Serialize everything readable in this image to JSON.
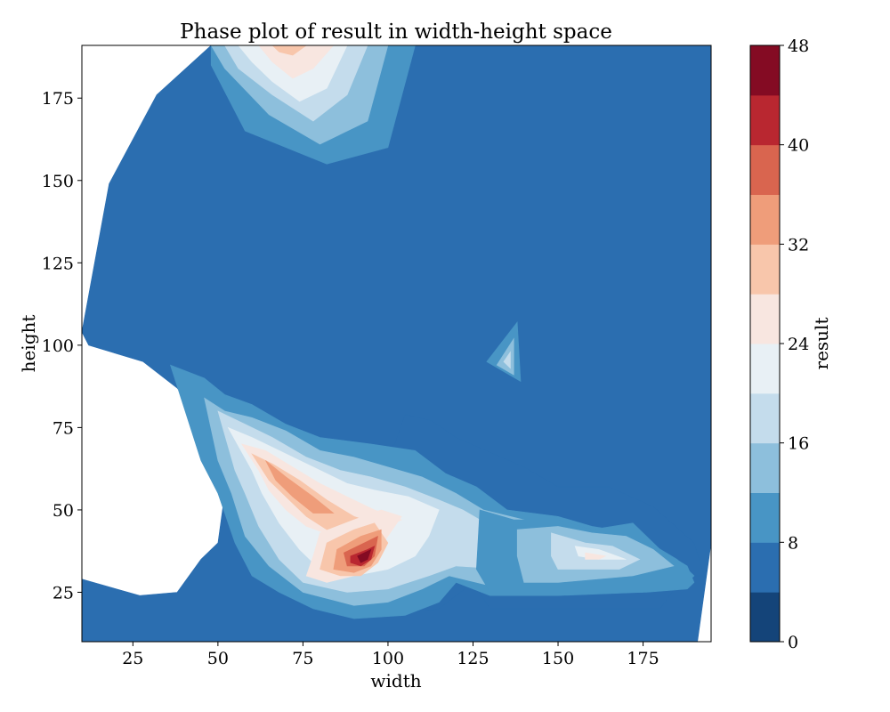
{
  "chart_data": {
    "type": "contour",
    "title": "Phase plot of result in width-height space",
    "xlabel": "width",
    "ylabel": "height",
    "colorbar_label": "result",
    "xlim": [
      10,
      195
    ],
    "ylim": [
      10,
      191
    ],
    "xticks": [
      "25",
      "50",
      "75",
      "100",
      "125",
      "150",
      "175"
    ],
    "xtick_values": [
      25,
      50,
      75,
      100,
      125,
      150,
      175
    ],
    "yticks": [
      "25",
      "50",
      "75",
      "100",
      "125",
      "150",
      "175"
    ],
    "ytick_values": [
      25,
      50,
      75,
      100,
      125,
      150,
      175
    ],
    "colorbar_ticks": [
      "0",
      "8",
      "16",
      "24",
      "32",
      "40",
      "48"
    ],
    "colorbar_tick_values": [
      0,
      8,
      16,
      24,
      32,
      40,
      48
    ],
    "levels": [
      0,
      4,
      8,
      12,
      16,
      20,
      24,
      28,
      32,
      36,
      40,
      44,
      48
    ],
    "colors": [
      "#144479",
      "#2b6eb0",
      "#4895c5",
      "#8dbfdc",
      "#c4dcec",
      "#e8f0f5",
      "#f8e6e0",
      "#f8c6ab",
      "#ef9d7a",
      "#d9654f",
      "#b92730",
      "#840b23"
    ],
    "regions": [
      {
        "level": 1,
        "poly": [
          [
            10,
            104
          ],
          [
            18,
            149
          ],
          [
            32,
            176
          ],
          [
            48,
            191
          ],
          [
            195,
            191
          ],
          [
            195,
            40
          ],
          [
            191,
            10
          ],
          [
            10,
            10
          ],
          [
            10,
            29
          ],
          [
            27,
            24
          ],
          [
            38,
            25
          ],
          [
            45,
            35
          ],
          [
            50,
            40
          ],
          [
            52,
            55
          ],
          [
            44,
            80
          ],
          [
            38,
            87
          ],
          [
            28,
            95
          ],
          [
            12,
            100
          ]
        ]
      },
      {
        "level": 1,
        "poly": [
          [
            105,
            79
          ],
          [
            113,
            77
          ],
          [
            120,
            72
          ],
          [
            140,
            63
          ],
          [
            150,
            57
          ],
          [
            165,
            57
          ],
          [
            178,
            51
          ],
          [
            190,
            40
          ],
          [
            193,
            30
          ],
          [
            187,
            30
          ],
          [
            180,
            20
          ],
          [
            170,
            20
          ],
          [
            140,
            20
          ],
          [
            130,
            20
          ],
          [
            125,
            28
          ],
          [
            115,
            20
          ],
          [
            100,
            18
          ],
          [
            90,
            18
          ],
          [
            80,
            30
          ],
          [
            75,
            45
          ],
          [
            85,
            55
          ],
          [
            95,
            65
          ],
          [
            102,
            70
          ]
        ]
      },
      {
        "level": 2,
        "poly": [
          [
            36,
            94
          ],
          [
            46,
            90
          ],
          [
            52,
            85
          ],
          [
            60,
            82
          ],
          [
            70,
            76
          ],
          [
            80,
            72
          ],
          [
            95,
            70
          ],
          [
            108,
            68
          ],
          [
            117,
            61
          ],
          [
            126,
            57
          ],
          [
            135,
            50
          ],
          [
            150,
            48
          ],
          [
            160,
            45
          ],
          [
            172,
            43
          ],
          [
            185,
            35
          ],
          [
            190,
            30
          ],
          [
            188,
            28
          ],
          [
            175,
            25
          ],
          [
            150,
            24
          ],
          [
            130,
            24
          ],
          [
            120,
            28
          ],
          [
            115,
            22
          ],
          [
            105,
            18
          ],
          [
            90,
            17
          ],
          [
            78,
            20
          ],
          [
            68,
            25
          ],
          [
            60,
            30
          ],
          [
            55,
            40
          ],
          [
            50,
            55
          ],
          [
            45,
            65
          ]
        ]
      },
      {
        "level": 3,
        "poly": [
          [
            46,
            84
          ],
          [
            52,
            80
          ],
          [
            60,
            78
          ],
          [
            70,
            74
          ],
          [
            80,
            68
          ],
          [
            90,
            66
          ],
          [
            100,
            63
          ],
          [
            110,
            60
          ],
          [
            120,
            55
          ],
          [
            128,
            50
          ],
          [
            140,
            47
          ],
          [
            150,
            43
          ],
          [
            160,
            42
          ],
          [
            170,
            40
          ],
          [
            180,
            33
          ],
          [
            175,
            28
          ],
          [
            150,
            27
          ],
          [
            130,
            27
          ],
          [
            118,
            30
          ],
          [
            110,
            26
          ],
          [
            100,
            22
          ],
          [
            90,
            21
          ],
          [
            75,
            25
          ],
          [
            65,
            33
          ],
          [
            58,
            42
          ],
          [
            54,
            55
          ],
          [
            50,
            65
          ]
        ]
      },
      {
        "level": 4,
        "poly": [
          [
            50,
            80
          ],
          [
            58,
            76
          ],
          [
            66,
            72
          ],
          [
            76,
            66
          ],
          [
            86,
            62
          ],
          [
            95,
            60
          ],
          [
            105,
            57
          ],
          [
            115,
            53
          ],
          [
            122,
            50
          ],
          [
            132,
            44
          ],
          [
            142,
            40
          ],
          [
            152,
            38
          ],
          [
            160,
            37
          ],
          [
            168,
            35
          ],
          [
            160,
            33
          ],
          [
            150,
            32
          ],
          [
            135,
            32
          ],
          [
            120,
            33
          ],
          [
            112,
            30
          ],
          [
            100,
            26
          ],
          [
            88,
            25
          ],
          [
            75,
            28
          ],
          [
            68,
            35
          ],
          [
            62,
            45
          ],
          [
            58,
            55
          ],
          [
            55,
            62
          ]
        ]
      },
      {
        "level": 5,
        "poly": [
          [
            53,
            75
          ],
          [
            60,
            72
          ],
          [
            68,
            68
          ],
          [
            78,
            63
          ],
          [
            88,
            58
          ],
          [
            96,
            56
          ],
          [
            106,
            54
          ],
          [
            115,
            50
          ],
          [
            112,
            42
          ],
          [
            108,
            36
          ],
          [
            100,
            32
          ],
          [
            90,
            30
          ],
          [
            80,
            32
          ],
          [
            74,
            38
          ],
          [
            68,
            46
          ],
          [
            63,
            55
          ],
          [
            60,
            62
          ]
        ]
      },
      {
        "level": 6,
        "poly": [
          [
            57,
            70
          ],
          [
            64,
            68
          ],
          [
            72,
            63
          ],
          [
            80,
            58
          ],
          [
            88,
            54
          ],
          [
            96,
            50
          ],
          [
            104,
            47
          ],
          [
            98,
            44
          ],
          [
            92,
            42
          ],
          [
            84,
            42
          ],
          [
            76,
            45
          ],
          [
            70,
            50
          ],
          [
            65,
            56
          ],
          [
            62,
            62
          ]
        ]
      },
      {
        "level": 7,
        "poly": [
          [
            60,
            67
          ],
          [
            66,
            64
          ],
          [
            74,
            59
          ],
          [
            82,
            53
          ],
          [
            90,
            48
          ],
          [
            96,
            46
          ],
          [
            90,
            44
          ],
          [
            82,
            44
          ],
          [
            76,
            48
          ],
          [
            70,
            54
          ],
          [
            65,
            59
          ]
        ]
      },
      {
        "level": 8,
        "poly": [
          [
            64,
            65
          ],
          [
            70,
            60
          ],
          [
            78,
            54
          ],
          [
            84,
            49
          ],
          [
            78,
            49
          ],
          [
            72,
            54
          ],
          [
            67,
            59
          ]
        ]
      },
      {
        "level": 6,
        "poly": [
          [
            80,
            43
          ],
          [
            90,
            47
          ],
          [
            98,
            50
          ],
          [
            104,
            48
          ],
          [
            100,
            42
          ],
          [
            96,
            36
          ],
          [
            90,
            30
          ],
          [
            82,
            28
          ],
          [
            76,
            30
          ],
          [
            78,
            36
          ]
        ]
      },
      {
        "level": 7,
        "poly": [
          [
            82,
            40
          ],
          [
            90,
            44
          ],
          [
            96,
            46
          ],
          [
            100,
            40
          ],
          [
            97,
            34
          ],
          [
            92,
            30
          ],
          [
            86,
            30
          ],
          [
            80,
            32
          ]
        ]
      },
      {
        "level": 8,
        "poly": [
          [
            85,
            38
          ],
          [
            92,
            42
          ],
          [
            98,
            44
          ],
          [
            98,
            38
          ],
          [
            95,
            33
          ],
          [
            90,
            31
          ],
          [
            84,
            32
          ]
        ]
      },
      {
        "level": 9,
        "poly": [
          [
            87,
            37
          ],
          [
            93,
            40
          ],
          [
            97,
            42
          ],
          [
            96,
            36
          ],
          [
            93,
            33
          ],
          [
            88,
            33
          ]
        ]
      },
      {
        "level": 10,
        "poly": [
          [
            89,
            36
          ],
          [
            94,
            38
          ],
          [
            96,
            39
          ],
          [
            95,
            35
          ],
          [
            92,
            33
          ],
          [
            89,
            34
          ]
        ]
      },
      {
        "level": 11,
        "poly": [
          [
            91,
            36
          ],
          [
            95,
            38
          ],
          [
            94,
            35
          ],
          [
            92,
            34
          ]
        ]
      },
      {
        "level": 2,
        "poly": [
          [
            127,
            50
          ],
          [
            137,
            47
          ],
          [
            150,
            47
          ],
          [
            160,
            44
          ],
          [
            172,
            46
          ],
          [
            180,
            38
          ],
          [
            188,
            33
          ],
          [
            190,
            28
          ],
          [
            188,
            26
          ],
          [
            176,
            25
          ],
          [
            150,
            25
          ],
          [
            130,
            25
          ],
          [
            126,
            32
          ]
        ]
      },
      {
        "level": 3,
        "poly": [
          [
            138,
            44
          ],
          [
            150,
            45
          ],
          [
            160,
            43
          ],
          [
            170,
            42
          ],
          [
            178,
            38
          ],
          [
            184,
            33
          ],
          [
            172,
            30
          ],
          [
            150,
            28
          ],
          [
            140,
            28
          ],
          [
            138,
            36
          ]
        ]
      },
      {
        "level": 4,
        "poly": [
          [
            148,
            43
          ],
          [
            158,
            40
          ],
          [
            166,
            39
          ],
          [
            174,
            35
          ],
          [
            168,
            32
          ],
          [
            150,
            32
          ],
          [
            148,
            36
          ]
        ]
      },
      {
        "level": 5,
        "poly": [
          [
            155,
            39
          ],
          [
            162,
            38
          ],
          [
            170,
            35
          ],
          [
            162,
            35
          ],
          [
            156,
            36
          ]
        ]
      },
      {
        "level": 6,
        "poly": [
          [
            158,
            37
          ],
          [
            164,
            36
          ],
          [
            162,
            35
          ],
          [
            158,
            35
          ]
        ]
      },
      {
        "level": 2,
        "poly": [
          [
            129,
            95
          ],
          [
            138,
            107
          ],
          [
            139,
            89
          ]
        ]
      },
      {
        "level": 3,
        "poly": [
          [
            132,
            94
          ],
          [
            137,
            102
          ],
          [
            137,
            91
          ]
        ]
      },
      {
        "level": 4,
        "poly": [
          [
            134,
            95
          ],
          [
            136,
            98
          ],
          [
            136,
            93
          ]
        ]
      },
      {
        "level": 2,
        "poly": [
          [
            48,
            191
          ],
          [
            108,
            191
          ],
          [
            100,
            160
          ],
          [
            82,
            155
          ],
          [
            58,
            165
          ],
          [
            48,
            185
          ]
        ]
      },
      {
        "level": 3,
        "poly": [
          [
            48,
            191
          ],
          [
            100,
            191
          ],
          [
            94,
            168
          ],
          [
            80,
            161
          ],
          [
            65,
            170
          ],
          [
            52,
            184
          ]
        ]
      },
      {
        "level": 4,
        "poly": [
          [
            52,
            191
          ],
          [
            94,
            191
          ],
          [
            88,
            176
          ],
          [
            78,
            168
          ],
          [
            66,
            176
          ],
          [
            56,
            184
          ]
        ]
      },
      {
        "level": 5,
        "poly": [
          [
            56,
            191
          ],
          [
            88,
            191
          ],
          [
            82,
            178
          ],
          [
            74,
            174
          ],
          [
            66,
            180
          ],
          [
            60,
            186
          ]
        ]
      },
      {
        "level": 6,
        "poly": [
          [
            62,
            191
          ],
          [
            84,
            191
          ],
          [
            78,
            184
          ],
          [
            72,
            181
          ],
          [
            66,
            186
          ]
        ]
      },
      {
        "level": 7,
        "poly": [
          [
            66,
            191
          ],
          [
            76,
            191
          ],
          [
            72,
            188
          ],
          [
            68,
            189
          ]
        ]
      }
    ]
  }
}
